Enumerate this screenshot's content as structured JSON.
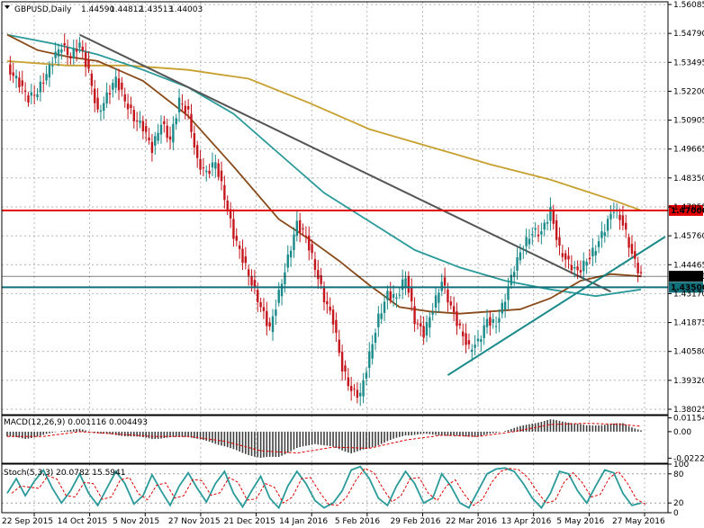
{
  "chart_data": {
    "type": "candlestick",
    "symbol_header": "GBPUSD,Daily",
    "ohlc_header": [
      "1.44590",
      "1.44812",
      "1.43513",
      "1.44003"
    ],
    "price_axis_ticks": [
      "1.56085",
      "1.54790",
      "1.53495",
      "1.52200",
      "1.50905",
      "1.49665",
      "1.48350",
      "1.47055",
      "1.45760",
      "1.44465",
      "1.43170",
      "1.41875",
      "1.40580",
      "1.39320",
      "1.38025"
    ],
    "date_ticks": [
      "22 Sep 2015",
      "14 Oct 2015",
      "5 Nov 2015",
      "27 Nov 2015",
      "21 Dec 2015",
      "14 Jan 2016",
      "5 Feb 2016",
      "29 Feb 2016",
      "22 Mar 2016",
      "13 Apr 2016",
      "5 May 2016",
      "27 May 2016"
    ],
    "price_range": [
      1.377,
      1.565
    ],
    "levels": [
      {
        "price": 1.47,
        "label": "1.47000",
        "color": "#e00000"
      },
      {
        "price": 1.435,
        "label": "1.43500",
        "color": "#0f6f7a"
      },
      {
        "price": 1.44003,
        "label": "1.44003",
        "color": "#000000"
      }
    ],
    "close_path": [
      [
        0,
        1.535
      ],
      [
        4,
        1.528
      ],
      [
        7,
        1.521
      ],
      [
        10,
        1.524
      ],
      [
        13,
        1.532
      ],
      [
        16,
        1.541
      ],
      [
        18,
        1.545
      ],
      [
        21,
        1.54
      ],
      [
        24,
        1.546
      ],
      [
        27,
        1.533
      ],
      [
        30,
        1.514
      ],
      [
        33,
        1.522
      ],
      [
        36,
        1.53
      ],
      [
        39,
        1.52
      ],
      [
        42,
        1.512
      ],
      [
        45,
        1.508
      ],
      [
        48,
        1.498
      ],
      [
        51,
        1.51
      ],
      [
        54,
        1.502
      ],
      [
        57,
        1.52
      ],
      [
        60,
        1.514
      ],
      [
        63,
        1.492
      ],
      [
        66,
        1.487
      ],
      [
        69,
        1.492
      ],
      [
        72,
        1.476
      ],
      [
        75,
        1.459
      ],
      [
        78,
        1.448
      ],
      [
        81,
        1.437
      ],
      [
        84,
        1.426
      ],
      [
        87,
        1.416
      ],
      [
        90,
        1.432
      ],
      [
        93,
        1.448
      ],
      [
        96,
        1.464
      ],
      [
        99,
        1.458
      ],
      [
        102,
        1.444
      ],
      [
        105,
        1.43
      ],
      [
        108,
        1.42
      ],
      [
        111,
        1.398
      ],
      [
        114,
        1.388
      ],
      [
        117,
        1.386
      ],
      [
        120,
        1.404
      ],
      [
        123,
        1.421
      ],
      [
        126,
        1.432
      ],
      [
        129,
        1.43
      ],
      [
        132,
        1.44
      ],
      [
        135,
        1.42
      ],
      [
        138,
        1.414
      ],
      [
        141,
        1.425
      ],
      [
        144,
        1.438
      ],
      [
        147,
        1.426
      ],
      [
        150,
        1.416
      ],
      [
        153,
        1.407
      ],
      [
        156,
        1.41
      ],
      [
        159,
        1.42
      ],
      [
        162,
        1.418
      ],
      [
        165,
        1.43
      ],
      [
        168,
        1.444
      ],
      [
        171,
        1.454
      ],
      [
        174,
        1.46
      ],
      [
        177,
        1.46
      ],
      [
        180,
        1.47
      ],
      [
        183,
        1.452
      ],
      [
        186,
        1.446
      ],
      [
        189,
        1.442
      ],
      [
        192,
        1.447
      ],
      [
        195,
        1.453
      ],
      [
        198,
        1.462
      ],
      [
        201,
        1.471
      ],
      [
        204,
        1.464
      ],
      [
        207,
        1.45
      ],
      [
        210,
        1.44
      ]
    ],
    "moving_averages": [
      {
        "color": "#c8a030",
        "points": [
          [
            0,
            1.538
          ],
          [
            20,
            1.536
          ],
          [
            40,
            1.536
          ],
          [
            60,
            1.534
          ],
          [
            80,
            1.53
          ],
          [
            100,
            1.519
          ],
          [
            120,
            1.507
          ],
          [
            140,
            1.499
          ],
          [
            160,
            1.491
          ],
          [
            180,
            1.484
          ],
          [
            200,
            1.475
          ],
          [
            210,
            1.47
          ]
        ]
      },
      {
        "color": "#2a9a9a",
        "points": [
          [
            0,
            1.55
          ],
          [
            15,
            1.546
          ],
          [
            30,
            1.541
          ],
          [
            45,
            1.534
          ],
          [
            60,
            1.526
          ],
          [
            75,
            1.514
          ],
          [
            90,
            1.496
          ],
          [
            105,
            1.478
          ],
          [
            120,
            1.465
          ],
          [
            135,
            1.452
          ],
          [
            150,
            1.444
          ],
          [
            165,
            1.438
          ],
          [
            180,
            1.434
          ],
          [
            195,
            1.431
          ],
          [
            210,
            1.434
          ]
        ]
      },
      {
        "color": "#8a4a1a",
        "points": [
          [
            0,
            1.55
          ],
          [
            10,
            1.543
          ],
          [
            20,
            1.54
          ],
          [
            30,
            1.538
          ],
          [
            45,
            1.529
          ],
          [
            60,
            1.513
          ],
          [
            75,
            1.49
          ],
          [
            90,
            1.466
          ],
          [
            100,
            1.457
          ],
          [
            110,
            1.447
          ],
          [
            120,
            1.436
          ],
          [
            130,
            1.426
          ],
          [
            140,
            1.424
          ],
          [
            150,
            1.423
          ],
          [
            160,
            1.424
          ],
          [
            170,
            1.425
          ],
          [
            180,
            1.43
          ],
          [
            190,
            1.438
          ],
          [
            200,
            1.441
          ],
          [
            210,
            1.44
          ]
        ]
      }
    ],
    "trendlines": [
      {
        "color": "#555555",
        "from": [
          24,
          1.55
        ],
        "to": [
          200,
          1.433
        ]
      },
      {
        "color": "#1a8a8a",
        "from": [
          146,
          1.395
        ],
        "to": [
          218,
          1.458
        ]
      }
    ],
    "macd": {
      "label": "MACD(12,26,9) 0.001116 0.004493",
      "ticks": [
        "0.011546",
        "0.00",
        "-0.022242"
      ],
      "range": [
        -0.0265,
        0.0135
      ],
      "histogram": [
        [
          0,
          -0.004
        ],
        [
          6,
          -0.006
        ],
        [
          12,
          -0.003
        ],
        [
          18,
          0.001
        ],
        [
          24,
          0.002
        ],
        [
          30,
          -0.001
        ],
        [
          36,
          -0.003
        ],
        [
          42,
          -0.004
        ],
        [
          48,
          -0.006
        ],
        [
          54,
          -0.005
        ],
        [
          60,
          -0.004
        ],
        [
          66,
          -0.008
        ],
        [
          72,
          -0.012
        ],
        [
          78,
          -0.018
        ],
        [
          84,
          -0.022
        ],
        [
          90,
          -0.021
        ],
        [
          96,
          -0.014
        ],
        [
          102,
          -0.01
        ],
        [
          108,
          -0.013
        ],
        [
          114,
          -0.018
        ],
        [
          120,
          -0.014
        ],
        [
          126,
          -0.008
        ],
        [
          132,
          -0.003
        ],
        [
          138,
          -0.002
        ],
        [
          144,
          -0.003
        ],
        [
          150,
          -0.004
        ],
        [
          156,
          -0.004
        ],
        [
          162,
          -0.001
        ],
        [
          168,
          0.003
        ],
        [
          174,
          0.007
        ],
        [
          180,
          0.01
        ],
        [
          186,
          0.008
        ],
        [
          192,
          0.005
        ],
        [
          198,
          0.006
        ],
        [
          204,
          0.007
        ],
        [
          210,
          0.001
        ]
      ],
      "signal": [
        [
          0,
          -0.004
        ],
        [
          12,
          -0.004
        ],
        [
          24,
          0.0
        ],
        [
          36,
          -0.002
        ],
        [
          48,
          -0.004
        ],
        [
          60,
          -0.004
        ],
        [
          72,
          -0.008
        ],
        [
          84,
          -0.016
        ],
        [
          96,
          -0.018
        ],
        [
          108,
          -0.013
        ],
        [
          120,
          -0.014
        ],
        [
          132,
          -0.007
        ],
        [
          144,
          -0.003
        ],
        [
          156,
          -0.004
        ],
        [
          168,
          0.0
        ],
        [
          180,
          0.006
        ],
        [
          192,
          0.007
        ],
        [
          204,
          0.006
        ],
        [
          210,
          0.0045
        ]
      ]
    },
    "stochastic": {
      "label": "Stoch(5,3,3) 20.0782 15.5941",
      "ticks": [
        "100",
        "80",
        "20",
        "0"
      ],
      "range": [
        0,
        100
      ],
      "main": [
        [
          0,
          40
        ],
        [
          3,
          70
        ],
        [
          6,
          35
        ],
        [
          9,
          65
        ],
        [
          12,
          88
        ],
        [
          15,
          50
        ],
        [
          18,
          20
        ],
        [
          21,
          45
        ],
        [
          24,
          80
        ],
        [
          27,
          40
        ],
        [
          30,
          15
        ],
        [
          33,
          50
        ],
        [
          36,
          85
        ],
        [
          39,
          60
        ],
        [
          42,
          18
        ],
        [
          45,
          35
        ],
        [
          48,
          78
        ],
        [
          51,
          45
        ],
        [
          54,
          15
        ],
        [
          57,
          55
        ],
        [
          60,
          82
        ],
        [
          63,
          50
        ],
        [
          66,
          22
        ],
        [
          69,
          60
        ],
        [
          72,
          85
        ],
        [
          75,
          40
        ],
        [
          78,
          12
        ],
        [
          81,
          45
        ],
        [
          84,
          75
        ],
        [
          87,
          30
        ],
        [
          90,
          10
        ],
        [
          93,
          55
        ],
        [
          96,
          85
        ],
        [
          99,
          60
        ],
        [
          102,
          25
        ],
        [
          105,
          10
        ],
        [
          108,
          20
        ],
        [
          111,
          45
        ],
        [
          114,
          88
        ],
        [
          117,
          95
        ],
        [
          120,
          70
        ],
        [
          123,
          30
        ],
        [
          126,
          15
        ],
        [
          129,
          55
        ],
        [
          132,
          85
        ],
        [
          135,
          60
        ],
        [
          138,
          20
        ],
        [
          141,
          30
        ],
        [
          144,
          80
        ],
        [
          147,
          55
        ],
        [
          150,
          20
        ],
        [
          153,
          10
        ],
        [
          156,
          45
        ],
        [
          159,
          80
        ],
        [
          162,
          90
        ],
        [
          165,
          92
        ],
        [
          168,
          85
        ],
        [
          171,
          60
        ],
        [
          174,
          30
        ],
        [
          177,
          10
        ],
        [
          180,
          40
        ],
        [
          183,
          85
        ],
        [
          186,
          80
        ],
        [
          189,
          45
        ],
        [
          192,
          20
        ],
        [
          195,
          55
        ],
        [
          198,
          88
        ],
        [
          201,
          82
        ],
        [
          204,
          40
        ],
        [
          207,
          15
        ],
        [
          210,
          20
        ]
      ]
    }
  }
}
